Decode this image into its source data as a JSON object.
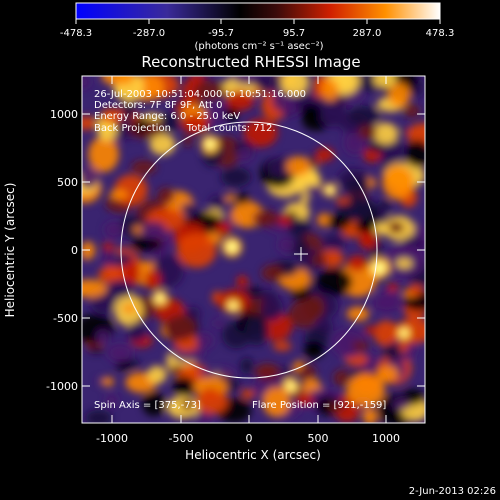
{
  "colorbar": {
    "tick_labels": [
      "-478.3",
      "-287.0",
      "-95.7",
      "95.7",
      "287.0",
      "478.3"
    ],
    "units_label": "(photons cm⁻² s⁻¹ asec⁻²)",
    "colors": [
      "#0000ff",
      "#2a1a8a",
      "#000000",
      "#7a1a1a",
      "#ff2a00",
      "#ffa000",
      "#ffffff"
    ]
  },
  "title": "Reconstructed RHESSI Image",
  "info": {
    "time_range": "26-Jul-2003 10:51:04.000 to 10:51:16.000",
    "detectors": "Detectors: 7F 8F 9F, Att 0",
    "energy_range": "Energy Range: 6.0 - 25.0 keV",
    "method_counts": "Back Projection     Total counts: 712."
  },
  "footer_labels": {
    "spin_axis": "Spin Axis = [375,-73]",
    "flare_position": "Flare Position = [921,-159]"
  },
  "axes": {
    "xlabel": "Heliocentric X (arcsec)",
    "ylabel": "Heliocentric Y (arcsec)",
    "xticks": [
      "-1000",
      "-500",
      "0",
      "500",
      "1000"
    ],
    "yticks": [
      "1000",
      "500",
      "0",
      "-500",
      "-1000"
    ]
  },
  "date_stamp": "2-Jun-2013 02:26"
}
